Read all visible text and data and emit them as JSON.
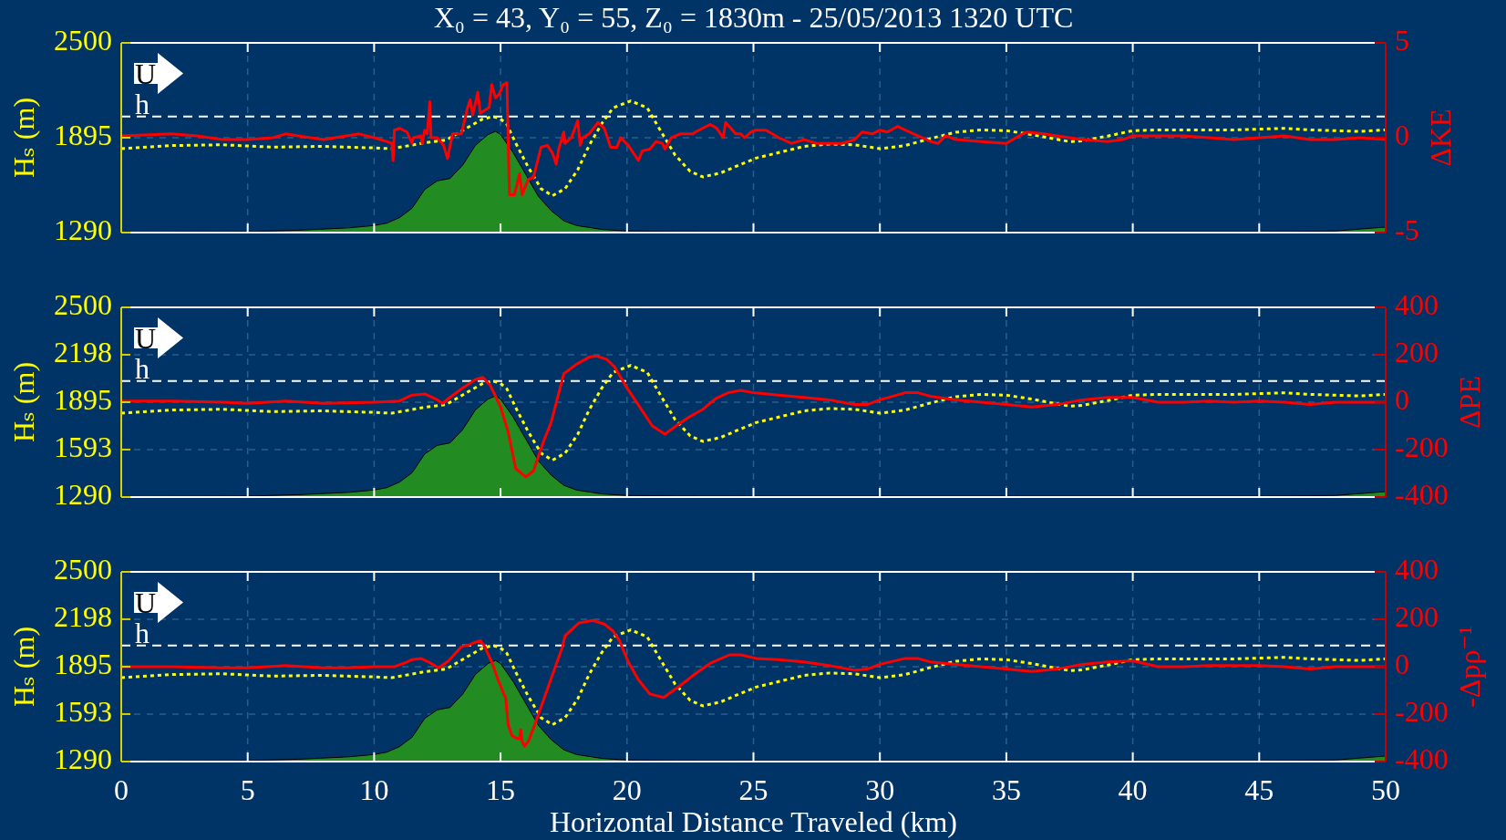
{
  "chart_data": [
    {
      "type": "line",
      "title": "X₀ = 43, Y₀ = 55, Z₀ = 1830m - 25/05/2013 1320 UTC",
      "ylabel": "Hₛ (m)",
      "y2label": "ΔKE",
      "xlim": [
        0,
        50
      ],
      "xticks": [
        0,
        5,
        10,
        15,
        20,
        25,
        30,
        35,
        40,
        45,
        50
      ],
      "ylim": [
        1290,
        2500
      ],
      "yticks": [
        1290,
        1895,
        2500
      ],
      "y2lim": [
        -5,
        5
      ],
      "y2ticks": [
        -5,
        0,
        5
      ],
      "tick_labels": "y",
      "grid": true,
      "ref_lines": [
        {
          "axis": "y",
          "value": 2030,
          "label": "h",
          "color": "#ffffff",
          "line_style": "dashed"
        }
      ],
      "annotations": [
        "U"
      ],
      "series": [
        {
          "type": "area",
          "color": "#228b22",
          "x": [
            0,
            5,
            7,
            9,
            10,
            10.5,
            11,
            11.5,
            12,
            12.5,
            13,
            13.5,
            14,
            14.5,
            14.8,
            15,
            15.5,
            16,
            16.5,
            17,
            17.5,
            18,
            19,
            20,
            22,
            25,
            30,
            35,
            40,
            45,
            48,
            50
          ],
          "values": [
            1292,
            1296,
            1305,
            1320,
            1335,
            1350,
            1385,
            1445,
            1565,
            1620,
            1635,
            1720,
            1845,
            1915,
            1935,
            1915,
            1800,
            1660,
            1520,
            1430,
            1365,
            1335,
            1310,
            1300,
            1297,
            1295,
            1295,
            1295,
            1295,
            1295,
            1300,
            1325
          ]
        },
        {
          "color": "#ffff00",
          "line_style": "dotted",
          "x": [
            0,
            2,
            4,
            6,
            8,
            10,
            10.7,
            11.9,
            12.85,
            13.7,
            14.3,
            14.7,
            15,
            15.25,
            15.6,
            16.1,
            16.6,
            17.05,
            17.55,
            18.05,
            18.5,
            19,
            19.45,
            20.15,
            20.8,
            21.25,
            21.9,
            22.5,
            23,
            23.7,
            24.5,
            25.1,
            26,
            27,
            28,
            29,
            30,
            31,
            32,
            33,
            34,
            35,
            36,
            37,
            37.5,
            38,
            39,
            40,
            41,
            42,
            43,
            44,
            45,
            46,
            47,
            48,
            49,
            50
          ],
          "values": [
            1825,
            1845,
            1850,
            1835,
            1840,
            1830,
            1825,
            1860,
            1880,
            1960,
            2015,
            2030,
            2015,
            1980,
            1860,
            1705,
            1570,
            1525,
            1570,
            1690,
            1845,
            1985,
            2085,
            2130,
            2085,
            1960,
            1785,
            1680,
            1645,
            1670,
            1725,
            1765,
            1800,
            1840,
            1855,
            1850,
            1825,
            1845,
            1890,
            1930,
            1945,
            1940,
            1915,
            1885,
            1870,
            1875,
            1905,
            1940,
            1945,
            1945,
            1945,
            1945,
            1950,
            1955,
            1945,
            1940,
            1935,
            1945
          ]
        },
        {
          "color": "#ff0000",
          "axis": "y2",
          "x": [
            0,
            2,
            3,
            4,
            5,
            6,
            6.5,
            7,
            8,
            8.9,
            9.4,
            10,
            10.5,
            10.7,
            10.75,
            10.8,
            11,
            11.3,
            11.5,
            11.55,
            11.85,
            11.9,
            12,
            12.1,
            12.2,
            12.25,
            12.5,
            12.75,
            12.9,
            13.1,
            13.45,
            13.7,
            13.8,
            13.9,
            14.1,
            14.2,
            14.55,
            14.65,
            14.8,
            14.95,
            15.1,
            15.25,
            15.35,
            15.55,
            15.75,
            15.85,
            16.1,
            16.3,
            16.6,
            16.85,
            17.05,
            17.2,
            17.3,
            17.5,
            17.55,
            17.8,
            18.05,
            18.15,
            18.25,
            18.5,
            18.85,
            19.1,
            19.35,
            19.6,
            19.75,
            20.05,
            20.45,
            20.6,
            20.9,
            21.15,
            21.4,
            21.5,
            21.75,
            22.1,
            22.6,
            22.7,
            23.3,
            23.55,
            23.8,
            23.9,
            24.3,
            24.5,
            24.65,
            24.9,
            25.1,
            25.5,
            26,
            26.5,
            27,
            27.5,
            28,
            28.5,
            29,
            29.3,
            29.7,
            30,
            30.3,
            30.7,
            31,
            31.5,
            32,
            32.3,
            32.6,
            33,
            34,
            35,
            35.5,
            35.8,
            36.5,
            37,
            38,
            39,
            39.6,
            40,
            41,
            42,
            43,
            44,
            45,
            46,
            47,
            48,
            49,
            50
          ],
          "values": [
            0.1,
            0.2,
            0.1,
            -0.1,
            -0.1,
            0,
            0.2,
            0.1,
            -0.1,
            0.1,
            0.2,
            0,
            -0.2,
            -0.3,
            -1.2,
            0.4,
            0.5,
            0.3,
            -0.3,
            0,
            0.1,
            -0.3,
            0.4,
            0.2,
            1.9,
            0,
            0,
            -0.4,
            -1.1,
            0.2,
            0.2,
            1.6,
            2,
            1.2,
            2.4,
            1.3,
            1.6,
            2.8,
            2.1,
            2.3,
            2.8,
            2.9,
            -3,
            -3,
            -1.9,
            -3,
            -2.2,
            -2.1,
            -0.5,
            -0.4,
            -0.8,
            -1.4,
            -0.6,
            0.3,
            -0.3,
            0,
            0.9,
            -0.4,
            0,
            0.2,
            0.8,
            0.5,
            -0.5,
            -0.5,
            0,
            -0.4,
            -1.2,
            -0.7,
            -0.6,
            -0.2,
            -0.3,
            -0.6,
            0,
            0.2,
            0.2,
            0.3,
            0.7,
            0.5,
            0,
            0.8,
            0.2,
            0.2,
            0,
            0.3,
            0.4,
            0.4,
            0,
            -0.3,
            -0.1,
            -0.3,
            -0.3,
            -0.3,
            -0.1,
            0.3,
            0.2,
            0.4,
            0.3,
            0.6,
            0.4,
            0.1,
            -0.2,
            -0.3,
            0.1,
            -0.1,
            -0.2,
            -0.3,
            0.1,
            0.3,
            0.2,
            0.1,
            -0.1,
            -0.2,
            -0.1,
            0.1,
            0.1,
            0.1,
            0,
            -0.1,
            0,
            0.1,
            -0.1,
            -0.1,
            0,
            -0.1
          ]
        }
      ]
    },
    {
      "type": "line",
      "ylabel": "Hₛ (m)",
      "y2label": "ΔPE",
      "xlim": [
        0,
        50
      ],
      "xticks": [
        0,
        5,
        10,
        15,
        20,
        25,
        30,
        35,
        40,
        45,
        50
      ],
      "ylim": [
        1290,
        2500
      ],
      "yticks": [
        1290,
        1593,
        1895,
        2198,
        2500
      ],
      "y2lim": [
        -400,
        400
      ],
      "y2ticks": [
        -400,
        -200,
        0,
        200,
        400
      ],
      "tick_labels": "y",
      "grid": true,
      "ref_lines": [
        {
          "axis": "y",
          "value": 2030,
          "label": "h",
          "color": "#ffffff",
          "line_style": "dashed"
        }
      ],
      "annotations": [
        "U"
      ],
      "series": [
        {
          "type": "area",
          "color": "#228b22",
          "x": [
            0,
            5,
            7,
            9,
            10,
            10.5,
            11,
            11.5,
            12,
            12.5,
            13,
            13.5,
            14,
            14.5,
            14.8,
            15,
            15.5,
            16,
            16.5,
            17,
            17.5,
            18,
            19,
            20,
            22,
            25,
            30,
            35,
            40,
            45,
            48,
            50
          ],
          "values": [
            1292,
            1296,
            1305,
            1320,
            1335,
            1350,
            1385,
            1445,
            1565,
            1620,
            1635,
            1720,
            1845,
            1915,
            1935,
            1915,
            1800,
            1660,
            1520,
            1430,
            1365,
            1335,
            1310,
            1300,
            1297,
            1295,
            1295,
            1295,
            1295,
            1295,
            1300,
            1325
          ]
        },
        {
          "color": "#ffff00",
          "line_style": "dotted",
          "x": [
            0,
            2,
            4,
            6,
            8,
            10,
            10.7,
            11.9,
            12.85,
            13.7,
            14.3,
            14.7,
            15,
            15.25,
            15.6,
            16.1,
            16.6,
            17.05,
            17.55,
            18.05,
            18.5,
            19,
            19.45,
            20.15,
            20.8,
            21.25,
            21.9,
            22.5,
            23,
            23.7,
            24.5,
            25.1,
            26,
            27,
            28,
            29,
            30,
            31,
            32,
            33,
            34,
            35,
            36,
            37,
            37.5,
            38,
            39,
            40,
            41,
            42,
            43,
            44,
            45,
            46,
            47,
            48,
            49,
            50
          ],
          "values": [
            1825,
            1845,
            1850,
            1835,
            1840,
            1830,
            1825,
            1860,
            1880,
            1960,
            2015,
            2030,
            2015,
            1980,
            1860,
            1705,
            1570,
            1525,
            1570,
            1690,
            1845,
            1985,
            2085,
            2130,
            2085,
            1960,
            1785,
            1680,
            1645,
            1670,
            1725,
            1765,
            1800,
            1840,
            1855,
            1850,
            1825,
            1845,
            1890,
            1930,
            1945,
            1940,
            1915,
            1885,
            1870,
            1875,
            1905,
            1940,
            1945,
            1945,
            1945,
            1945,
            1950,
            1955,
            1945,
            1940,
            1935,
            1945
          ]
        },
        {
          "color": "#ff0000",
          "axis": "y2",
          "x": [
            0,
            2,
            4,
            5,
            6.5,
            8,
            10,
            11,
            11.5,
            12,
            12.5,
            12.7,
            13,
            13.5,
            14,
            14.3,
            14.6,
            15,
            15.3,
            15.6,
            16,
            16.3,
            16.7,
            17,
            17.5,
            18,
            18.5,
            18.8,
            19.2,
            19.5,
            20,
            20.5,
            21,
            21.5,
            22,
            22.5,
            23,
            23.5,
            24,
            24.5,
            25,
            26,
            27,
            28,
            29,
            29.5,
            30,
            31,
            31.5,
            32,
            33,
            34,
            35,
            36,
            37,
            38,
            39,
            40,
            41,
            42,
            43,
            44,
            45,
            46,
            47,
            48,
            49,
            50
          ],
          "values": [
            5,
            5,
            0,
            -5,
            5,
            -5,
            0,
            5,
            30,
            35,
            10,
            -5,
            20,
            60,
            95,
            105,
            70,
            -20,
            -125,
            -280,
            -315,
            -290,
            -165,
            -85,
            120,
            160,
            190,
            195,
            180,
            150,
            60,
            -20,
            -100,
            -135,
            -95,
            -60,
            -30,
            15,
            40,
            50,
            40,
            30,
            20,
            10,
            -10,
            -10,
            10,
            40,
            40,
            25,
            10,
            0,
            -10,
            -20,
            -10,
            10,
            20,
            20,
            0,
            0,
            5,
            0,
            5,
            0,
            -10,
            0,
            0,
            0
          ]
        }
      ]
    },
    {
      "type": "line",
      "xlabel": "Horizontal Distance Traveled (km)",
      "ylabel": "Hₛ (m)",
      "y2label": "-Δpρ⁻¹",
      "xlim": [
        0,
        50
      ],
      "xticks": [
        0,
        5,
        10,
        15,
        20,
        25,
        30,
        35,
        40,
        45,
        50
      ],
      "ylim": [
        1290,
        2500
      ],
      "yticks": [
        1290,
        1593,
        1895,
        2198,
        2500
      ],
      "y2lim": [
        -400,
        400
      ],
      "y2ticks": [
        -400,
        -200,
        0,
        200,
        400
      ],
      "grid": true,
      "ref_lines": [
        {
          "axis": "y",
          "value": 2030,
          "label": "h",
          "color": "#ffffff",
          "line_style": "dashed"
        }
      ],
      "annotations": [
        "U"
      ],
      "series": [
        {
          "type": "area",
          "color": "#228b22",
          "x": [
            0,
            5,
            7,
            9,
            10,
            10.5,
            11,
            11.5,
            12,
            12.5,
            13,
            13.5,
            14,
            14.5,
            14.8,
            15,
            15.5,
            16,
            16.5,
            17,
            17.5,
            18,
            19,
            20,
            22,
            25,
            30,
            35,
            40,
            45,
            48,
            50
          ],
          "values": [
            1292,
            1296,
            1305,
            1320,
            1335,
            1350,
            1385,
            1445,
            1565,
            1620,
            1635,
            1720,
            1845,
            1915,
            1935,
            1915,
            1800,
            1660,
            1520,
            1430,
            1365,
            1335,
            1310,
            1300,
            1297,
            1295,
            1295,
            1295,
            1295,
            1295,
            1300,
            1325
          ]
        },
        {
          "color": "#ffff00",
          "line_style": "dotted",
          "x": [
            0,
            2,
            4,
            6,
            8,
            10,
            10.7,
            11.9,
            12.85,
            13.7,
            14.3,
            14.7,
            15,
            15.25,
            15.6,
            16.1,
            16.6,
            17.05,
            17.55,
            18.05,
            18.5,
            19,
            19.45,
            20.15,
            20.8,
            21.25,
            21.9,
            22.5,
            23,
            23.7,
            24.5,
            25.1,
            26,
            27,
            28,
            29,
            30,
            31,
            32,
            33,
            34,
            35,
            36,
            37,
            37.5,
            38,
            39,
            40,
            41,
            42,
            43,
            44,
            45,
            46,
            47,
            48,
            49,
            50
          ],
          "values": [
            1825,
            1845,
            1850,
            1835,
            1840,
            1830,
            1825,
            1860,
            1880,
            1960,
            2015,
            2030,
            2015,
            1980,
            1860,
            1705,
            1570,
            1525,
            1570,
            1690,
            1845,
            1985,
            2085,
            2130,
            2085,
            1960,
            1785,
            1680,
            1645,
            1670,
            1725,
            1765,
            1800,
            1840,
            1855,
            1850,
            1825,
            1845,
            1890,
            1930,
            1945,
            1940,
            1915,
            1885,
            1870,
            1875,
            1905,
            1940,
            1945,
            1945,
            1945,
            1945,
            1950,
            1955,
            1945,
            1940,
            1935,
            1945
          ]
        },
        {
          "color": "#ff0000",
          "axis": "y2",
          "x": [
            0,
            2,
            4,
            5,
            6.5,
            8,
            8.9,
            10,
            10.8,
            11.3,
            11.5,
            11.85,
            12.15,
            12.55,
            12.95,
            13.45,
            13.7,
            14.05,
            14.2,
            14.35,
            14.65,
            14.9,
            15.15,
            15.2,
            15.3,
            15.45,
            15.6,
            15.75,
            15.8,
            15.85,
            15.95,
            16.1,
            16.35,
            16.85,
            17.2,
            17.45,
            17.55,
            18.1,
            18.65,
            19.1,
            19.45,
            19.7,
            20.05,
            20.45,
            20.9,
            21.45,
            22.1,
            22.7,
            23.3,
            24.05,
            24.5,
            25.1,
            26,
            27,
            28,
            29,
            29.5,
            30,
            31,
            31.5,
            32,
            33,
            34,
            35,
            36,
            37,
            38,
            39,
            40,
            41,
            42,
            43,
            44,
            45,
            46,
            47,
            48,
            49,
            50
          ],
          "values": [
            0,
            0,
            -5,
            -5,
            5,
            -5,
            -5,
            0,
            0,
            20,
            30,
            35,
            20,
            -5,
            25,
            85,
            90,
            105,
            110,
            90,
            20,
            -55,
            -120,
            -130,
            -245,
            -290,
            -300,
            -305,
            -265,
            -315,
            -335,
            -315,
            -245,
            -95,
            10,
            85,
            130,
            185,
            195,
            180,
            150,
            110,
            20,
            -55,
            -115,
            -130,
            -80,
            -30,
            15,
            50,
            50,
            35,
            30,
            20,
            5,
            -15,
            -10,
            10,
            35,
            35,
            20,
            10,
            0,
            -10,
            -20,
            -10,
            10,
            20,
            25,
            0,
            0,
            5,
            5,
            5,
            0,
            -10,
            0,
            0,
            0
          ]
        }
      ]
    }
  ]
}
